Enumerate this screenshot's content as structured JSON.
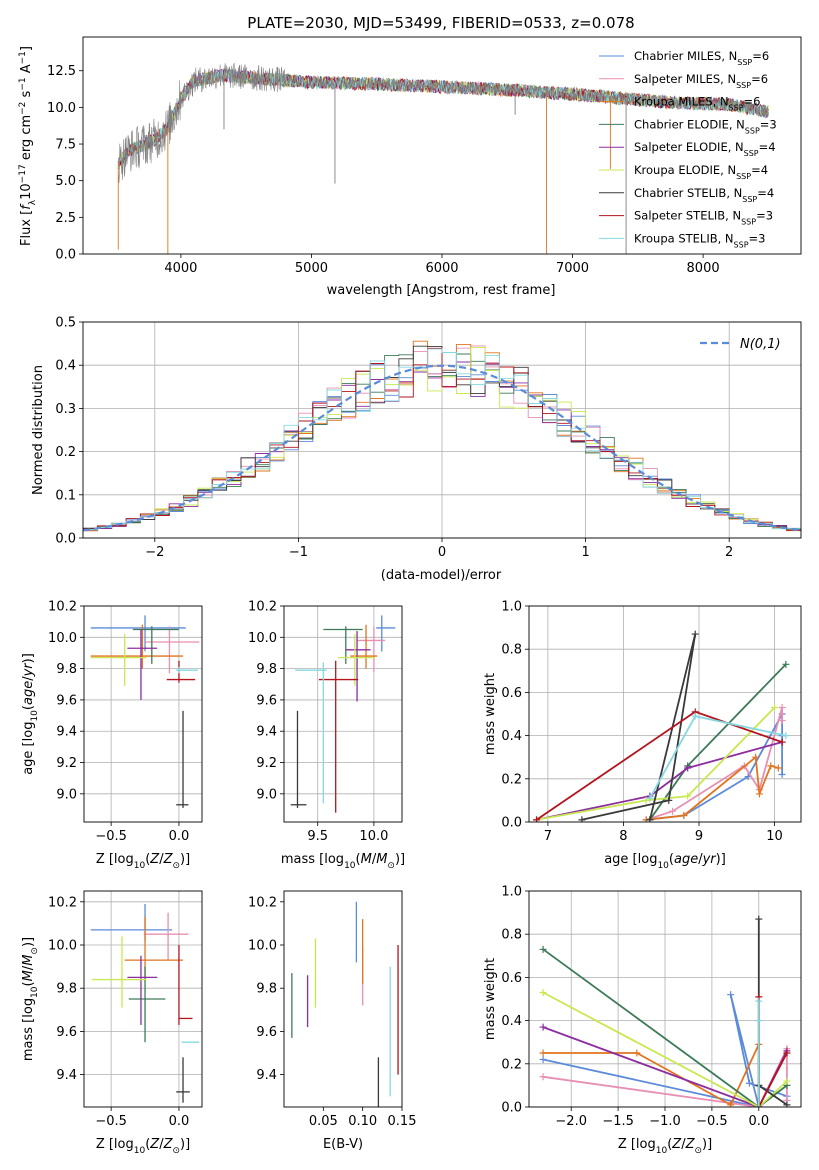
{
  "colors": {
    "chabrier_miles": "#5b8bd9",
    "salpeter_miles": "#e88fb4",
    "kroupa_miles": "#e1741f",
    "chabrier_elodie": "#3d7a57",
    "salpeter_elodie": "#8c2da0",
    "kroupa_elodie": "#c8e850",
    "chabrier_stelib": "#3a3a3a",
    "salpeter_stelib": "#b3141e",
    "kroupa_stelib": "#86d8e0",
    "gaussian": "#5b8bd9"
  },
  "chart_data": [
    {
      "id": "spectrum",
      "type": "line",
      "title": "PLATE=2030, MJD=53499, FIBERID=0533, z=0.078",
      "xlabel": "wavelength [Angstrom, rest frame]",
      "ylabel": "Flux [f_λ 10^-17 erg cm^-2 s^-1 A^-1]",
      "xlim": [
        3250,
        8750
      ],
      "ylim": [
        0,
        14.8
      ],
      "xticks": [
        4000,
        5000,
        6000,
        7000,
        8000
      ],
      "yticks": [
        0.0,
        2.5,
        5.0,
        7.5,
        10.0,
        12.5
      ],
      "grid": false,
      "legend_position": "upper right",
      "legend": [
        {
          "label": "Chabrier MILES, N",
          "sub": "SSP",
          "tail": "=6",
          "color_key": "chabrier_miles"
        },
        {
          "label": "Salpeter MILES, N",
          "sub": "SSP",
          "tail": "=6",
          "color_key": "salpeter_miles"
        },
        {
          "label": "Kroupa MILES, N",
          "sub": "SSP",
          "tail": "=6",
          "color_key": "kroupa_miles"
        },
        {
          "label": "Chabrier ELODIE, N",
          "sub": "SSP",
          "tail": "=3",
          "color_key": "chabrier_elodie"
        },
        {
          "label": "Salpeter ELODIE, N",
          "sub": "SSP",
          "tail": "=4",
          "color_key": "salpeter_elodie"
        },
        {
          "label": "Kroupa ELODIE, N",
          "sub": "SSP",
          "tail": "=4",
          "color_key": "kroupa_elodie"
        },
        {
          "label": "Chabrier STELIB, N",
          "sub": "SSP",
          "tail": "=4",
          "color_key": "chabrier_stelib"
        },
        {
          "label": "Salpeter STELIB, N",
          "sub": "SSP",
          "tail": "=3",
          "color_key": "salpeter_stelib"
        },
        {
          "label": "Kroupa STELIB, N",
          "sub": "SSP",
          "tail": "=3",
          "color_key": "kroupa_stelib"
        }
      ],
      "continuum": {
        "wavelength": [
          3520,
          3600,
          3700,
          3800,
          3900,
          4000,
          4100,
          4300,
          4600,
          5000,
          5500,
          6000,
          6500,
          7000,
          7400,
          7800,
          8200,
          8500
        ],
        "flux": [
          6.2,
          7.0,
          7.4,
          7.8,
          8.6,
          10.6,
          11.8,
          12.2,
          12.0,
          11.7,
          11.6,
          11.4,
          11.2,
          10.9,
          10.6,
          10.3,
          10.2,
          9.7
        ]
      }
    },
    {
      "id": "residuals",
      "type": "histogram",
      "xlabel": "(data-model)/error",
      "ylabel": "Normed distribution",
      "xlim": [
        -2.5,
        2.5
      ],
      "ylim": [
        0,
        0.5
      ],
      "xticks": [
        -2,
        -1,
        0,
        1,
        2
      ],
      "yticks": [
        0.0,
        0.1,
        0.2,
        0.3,
        0.4,
        0.5
      ],
      "grid": true,
      "legend_position": "upper right",
      "gaussian_label": "N(0,1)",
      "bin_width": 0.1,
      "bin_start": -2.5
    },
    {
      "id": "age_vs_Z",
      "type": "errorbar",
      "xlabel": "Z [log10(Z/Z⊙)]",
      "ylabel": "age [log10(age/yr)]",
      "xlim": [
        -0.7,
        0.17
      ],
      "ylim": [
        8.82,
        10.2
      ],
      "xticks": [
        -0.5,
        0.0
      ],
      "yticks": [
        9.0,
        9.2,
        9.4,
        9.6,
        9.8,
        10.0,
        10.2
      ],
      "grid": true,
      "points": [
        {
          "color_key": "chabrier_miles",
          "x": -0.25,
          "xerr": [
            0.4,
            0.3
          ],
          "y": 10.06,
          "yerr": [
            0.15,
            0.08
          ]
        },
        {
          "color_key": "salpeter_miles",
          "x": -0.07,
          "xerr": [
            0.18,
            0.22
          ],
          "y": 9.97,
          "yerr": [
            0.2,
            0.1
          ]
        },
        {
          "color_key": "kroupa_miles",
          "x": -0.27,
          "xerr": [
            0.38,
            0.3
          ],
          "y": 9.88,
          "yerr": [
            0.08,
            0.2
          ]
        },
        {
          "color_key": "chabrier_elodie",
          "x": -0.2,
          "xerr": [
            0.14,
            0.2
          ],
          "y": 10.05,
          "yerr": [
            0.22,
            0.02
          ]
        },
        {
          "color_key": "salpeter_elodie",
          "x": -0.28,
          "xerr": [
            0.1,
            0.12
          ],
          "y": 9.93,
          "yerr": [
            0.33,
            0.12
          ]
        },
        {
          "color_key": "kroupa_elodie",
          "x": -0.4,
          "xerr": [
            0.25,
            0.16
          ],
          "y": 9.87,
          "yerr": [
            0.18,
            0.15
          ]
        },
        {
          "color_key": "chabrier_stelib",
          "x": 0.03,
          "xerr": [
            0.05,
            0.04
          ],
          "y": 8.93,
          "yerr": [
            0.02,
            0.6
          ]
        },
        {
          "color_key": "salpeter_stelib",
          "x": 0.0,
          "xerr": [
            0.09,
            0.12
          ],
          "y": 9.73,
          "yerr": [
            0.02,
            0.12
          ]
        },
        {
          "color_key": "kroupa_stelib",
          "x": 0.0,
          "xerr": [
            0.02,
            0.14
          ],
          "y": 9.79,
          "yerr": [
            0.02,
            0.02
          ]
        }
      ]
    },
    {
      "id": "age_vs_mass",
      "type": "errorbar",
      "xlabel": "mass [log10(M/M⊙)]",
      "ylabel": "",
      "xlim": [
        9.2,
        10.25
      ],
      "ylim": [
        8.82,
        10.2
      ],
      "xticks": [
        9.5,
        10.0
      ],
      "yticks": [
        9.0,
        9.2,
        9.4,
        9.6,
        9.8,
        10.0,
        10.2
      ],
      "grid": true,
      "points": [
        {
          "color_key": "chabrier_miles",
          "x": 10.07,
          "xerr": [
            0.05,
            0.12
          ],
          "y": 10.06,
          "yerr": [
            0.15,
            0.08
          ]
        },
        {
          "color_key": "salpeter_miles",
          "x": 10.0,
          "xerr": [
            0.15,
            0.1
          ],
          "y": 9.98,
          "yerr": [
            0.2,
            0.09
          ]
        },
        {
          "color_key": "kroupa_miles",
          "x": 9.93,
          "xerr": [
            0.14,
            0.1
          ],
          "y": 9.88,
          "yerr": [
            0.08,
            0.2
          ]
        },
        {
          "color_key": "chabrier_elodie",
          "x": 9.75,
          "xerr": [
            0.2,
            0.15
          ],
          "y": 10.05,
          "yerr": [
            0.22,
            0.02
          ]
        },
        {
          "color_key": "salpeter_elodie",
          "x": 9.85,
          "xerr": [
            0.1,
            0.12
          ],
          "y": 9.92,
          "yerr": [
            0.33,
            0.12
          ]
        },
        {
          "color_key": "kroupa_elodie",
          "x": 9.83,
          "xerr": [
            0.15,
            0.18
          ],
          "y": 9.87,
          "yerr": [
            0.18,
            0.15
          ]
        },
        {
          "color_key": "chabrier_stelib",
          "x": 9.32,
          "xerr": [
            0.06,
            0.08
          ],
          "y": 8.93,
          "yerr": [
            0.02,
            0.6
          ]
        },
        {
          "color_key": "salpeter_stelib",
          "x": 9.66,
          "xerr": [
            0.15,
            0.2
          ],
          "y": 9.73,
          "yerr": [
            0.85,
            0.12
          ]
        },
        {
          "color_key": "kroupa_stelib",
          "x": 9.55,
          "xerr": [
            0.25,
            0.03
          ],
          "y": 9.79,
          "yerr": [
            0.85,
            0.05
          ]
        }
      ]
    },
    {
      "id": "weight_vs_age",
      "type": "line",
      "xlabel": "age [log10(age/yr)]",
      "ylabel": "mass weight",
      "xlim": [
        6.75,
        10.35
      ],
      "ylim": [
        0,
        1.0
      ],
      "xticks": [
        7,
        8,
        9,
        10
      ],
      "yticks": [
        0.0,
        0.2,
        0.4,
        0.6,
        0.8,
        1.0
      ],
      "grid": true,
      "series": [
        {
          "color_key": "chabrier_miles",
          "x": [
            8.3,
            8.8,
            9.65,
            10.1,
            10.1,
            10.1
          ],
          "y": [
            0.01,
            0.03,
            0.21,
            0.5,
            0.4,
            0.22
          ]
        },
        {
          "color_key": "salpeter_miles",
          "x": [
            8.3,
            8.65,
            9.6,
            9.8,
            10.1,
            10.1
          ],
          "y": [
            0.01,
            0.05,
            0.26,
            0.15,
            0.53,
            0.47
          ]
        },
        {
          "color_key": "kroupa_miles",
          "x": [
            8.3,
            8.8,
            9.75,
            9.8,
            9.95,
            10.05
          ],
          "y": [
            0.01,
            0.03,
            0.3,
            0.13,
            0.26,
            0.25
          ]
        },
        {
          "color_key": "chabrier_elodie",
          "x": [
            8.35,
            8.85,
            10.15
          ],
          "y": [
            0.01,
            0.26,
            0.73
          ]
        },
        {
          "color_key": "salpeter_elodie",
          "x": [
            6.85,
            8.35,
            8.85,
            10.1
          ],
          "y": [
            0.01,
            0.12,
            0.25,
            0.37
          ]
        },
        {
          "color_key": "kroupa_elodie",
          "x": [
            6.85,
            8.3,
            8.85,
            10.0
          ],
          "y": [
            0.01,
            0.1,
            0.12,
            0.53
          ]
        },
        {
          "color_key": "chabrier_stelib",
          "x": [
            7.45,
            8.6,
            8.95,
            8.35
          ],
          "y": [
            0.01,
            0.1,
            0.87,
            0.01
          ]
        },
        {
          "color_key": "salpeter_stelib",
          "x": [
            6.85,
            8.95,
            10.1
          ],
          "y": [
            0.01,
            0.51,
            0.37
          ]
        },
        {
          "color_key": "kroupa_stelib",
          "x": [
            8.35,
            8.95,
            10.15
          ],
          "y": [
            0.11,
            0.49,
            0.4
          ]
        }
      ]
    },
    {
      "id": "mass_vs_Z",
      "type": "errorbar",
      "xlabel": "Z [log10(Z/Z⊙)]",
      "ylabel": "mass [log10(M/M⊙)]",
      "xlim": [
        -0.7,
        0.17
      ],
      "ylim": [
        9.25,
        10.25
      ],
      "xticks": [
        -0.5,
        0.0
      ],
      "yticks": [
        9.4,
        9.6,
        9.8,
        10.0,
        10.2
      ],
      "grid": true,
      "points": [
        {
          "color_key": "chabrier_miles",
          "x": -0.25,
          "xerr": [
            0.4,
            0.2
          ],
          "y": 10.07,
          "yerr": [
            0.05,
            0.12
          ]
        },
        {
          "color_key": "salpeter_miles",
          "x": -0.08,
          "xerr": [
            0.18,
            0.15
          ],
          "y": 10.05,
          "yerr": [
            0.12,
            0.1
          ]
        },
        {
          "color_key": "kroupa_miles",
          "x": -0.25,
          "xerr": [
            0.15,
            0.28
          ],
          "y": 9.93,
          "yerr": [
            0.1,
            0.2
          ]
        },
        {
          "color_key": "chabrier_elodie",
          "x": -0.25,
          "xerr": [
            0.12,
            0.15
          ],
          "y": 9.75,
          "yerr": [
            0.2,
            0.15
          ]
        },
        {
          "color_key": "salpeter_elodie",
          "x": -0.28,
          "xerr": [
            0.1,
            0.12
          ],
          "y": 9.85,
          "yerr": [
            0.22,
            0.1
          ]
        },
        {
          "color_key": "kroupa_elodie",
          "x": -0.42,
          "xerr": [
            0.22,
            0.18
          ],
          "y": 9.84,
          "yerr": [
            0.13,
            0.2
          ]
        },
        {
          "color_key": "chabrier_stelib",
          "x": 0.03,
          "xerr": [
            0.05,
            0.05
          ],
          "y": 9.32,
          "yerr": [
            0.05,
            0.16
          ]
        },
        {
          "color_key": "salpeter_stelib",
          "x": 0.0,
          "xerr": [
            0.0,
            0.1
          ],
          "y": 9.66,
          "yerr": [
            0.03,
            0.34
          ]
        },
        {
          "color_key": "kroupa_stelib",
          "x": 0.02,
          "xerr": [
            0.0,
            0.13
          ],
          "y": 9.55,
          "yerr": [
            0.0,
            0.0
          ]
        }
      ]
    },
    {
      "id": "mass_vs_ebv",
      "type": "errorbar",
      "xlabel": "E(B-V)",
      "ylabel": "",
      "xlim": [
        0.0,
        0.15
      ],
      "ylim": [
        9.25,
        10.25
      ],
      "xticks": [
        0.05,
        0.1,
        0.15
      ],
      "yticks": [
        9.4,
        9.6,
        9.8,
        10.0,
        10.2
      ],
      "grid": false,
      "points": [
        {
          "color_key": "chabrier_miles",
          "x": 0.092,
          "xerr": [
            0.0,
            0.0
          ],
          "y": 10.06,
          "yerr": [
            0.14,
            0.14
          ]
        },
        {
          "color_key": "salpeter_miles",
          "x": 0.1,
          "xerr": [
            0.0,
            0.0
          ],
          "y": 9.85,
          "yerr": [
            0.13,
            0.13
          ]
        },
        {
          "color_key": "kroupa_miles",
          "x": 0.1,
          "xerr": [
            0.0,
            0.0
          ],
          "y": 9.97,
          "yerr": [
            0.15,
            0.15
          ]
        },
        {
          "color_key": "chabrier_elodie",
          "x": 0.01,
          "xerr": [
            0.0,
            0.0
          ],
          "y": 9.72,
          "yerr": [
            0.15,
            0.15
          ]
        },
        {
          "color_key": "salpeter_elodie",
          "x": 0.03,
          "xerr": [
            0.0,
            0.0
          ],
          "y": 9.74,
          "yerr": [
            0.12,
            0.12
          ]
        },
        {
          "color_key": "kroupa_elodie",
          "x": 0.04,
          "xerr": [
            0.0,
            0.0
          ],
          "y": 9.87,
          "yerr": [
            0.16,
            0.16
          ]
        },
        {
          "color_key": "chabrier_stelib",
          "x": 0.12,
          "xerr": [
            0.0,
            0.0
          ],
          "y": 9.32,
          "yerr": [
            0.16,
            0.16
          ]
        },
        {
          "color_key": "salpeter_stelib",
          "x": 0.145,
          "xerr": [
            0.0,
            0.0
          ],
          "y": 9.7,
          "yerr": [
            0.3,
            0.3
          ]
        },
        {
          "color_key": "kroupa_stelib",
          "x": 0.135,
          "xerr": [
            0.0,
            0.0
          ],
          "y": 9.6,
          "yerr": [
            0.3,
            0.3
          ]
        }
      ]
    },
    {
      "id": "weight_vs_Z",
      "type": "line",
      "xlabel": "Z [log10(Z/Z⊙)]",
      "ylabel": "mass weight",
      "xlim": [
        -2.45,
        0.45
      ],
      "ylim": [
        0,
        1.0
      ],
      "xticks": [
        -2.0,
        -1.5,
        -1.0,
        -0.5,
        0.0
      ],
      "yticks": [
        0.0,
        0.2,
        0.4,
        0.6,
        0.8,
        1.0
      ],
      "grid": true,
      "series": [
        {
          "color_key": "chabrier_miles",
          "x": [
            -2.3,
            0.0,
            -0.3,
            -0.1,
            0.3
          ],
          "y": [
            0.22,
            0.0,
            0.52,
            0.11,
            0.05
          ]
        },
        {
          "color_key": "salpeter_miles",
          "x": [
            -2.3,
            0.0,
            0.3,
            0.3
          ],
          "y": [
            0.14,
            0.0,
            0.27,
            0.03
          ]
        },
        {
          "color_key": "kroupa_miles",
          "x": [
            -2.3,
            -1.3,
            -0.3,
            0.0,
            0.0
          ],
          "y": [
            0.25,
            0.25,
            0.01,
            0.29,
            0.0
          ]
        },
        {
          "color_key": "chabrier_elodie",
          "x": [
            -2.3,
            0.0,
            0.3
          ],
          "y": [
            0.73,
            0.0,
            0.1
          ]
        },
        {
          "color_key": "salpeter_elodie",
          "x": [
            -2.3,
            0.0,
            0.3
          ],
          "y": [
            0.37,
            0.0,
            0.26
          ]
        },
        {
          "color_key": "kroupa_elodie",
          "x": [
            -2.3,
            0.0,
            0.3
          ],
          "y": [
            0.53,
            0.0,
            0.12
          ]
        },
        {
          "color_key": "chabrier_stelib",
          "x": [
            0.0,
            0.0,
            0.0,
            0.3
          ],
          "y": [
            0.87,
            0.0,
            0.1,
            0.01
          ]
        },
        {
          "color_key": "salpeter_stelib",
          "x": [
            0.0,
            0.0,
            0.3
          ],
          "y": [
            0.51,
            0.0,
            0.25
          ]
        },
        {
          "color_key": "kroupa_stelib",
          "x": [
            0.0,
            0.0,
            0.0
          ],
          "y": [
            0.4,
            0.0,
            0.49
          ]
        }
      ]
    }
  ]
}
